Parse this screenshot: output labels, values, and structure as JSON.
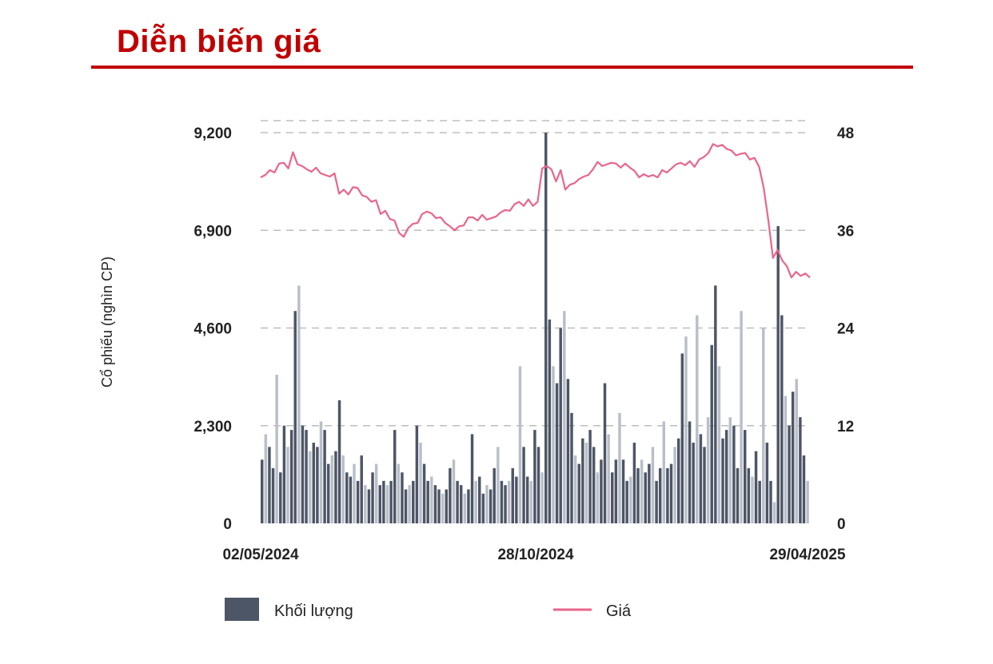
{
  "title": "Diễn biến giá",
  "colors": {
    "title": "#c00000",
    "volume": "#4d5666",
    "volume_light": "#b9bfc8",
    "price": "#e8658c",
    "grid": "#bdbdbd"
  },
  "chart_data": {
    "type": "bar+line",
    "ylabel_left": "Cổ phiếu (nghìn CP)",
    "ylim_left": [
      0,
      9200
    ],
    "yticks_left": [
      "0",
      "2,300",
      "4,600",
      "6,900",
      "9,200"
    ],
    "ylim_right": [
      0,
      48
    ],
    "yticks_right": [
      "0",
      "12",
      "24",
      "36",
      "48"
    ],
    "x_range": [
      "02/05/2024",
      "29/04/2025"
    ],
    "x_tick_labels": [
      "02/05/2024",
      "28/10/2024",
      "29/04/2025"
    ],
    "grid": "horizontal dashed",
    "legend_position": "bottom",
    "series": [
      {
        "name": "Khối lượng",
        "kind": "bar",
        "note": "daily volume (nghìn CP), sampled ~every 2 sessions",
        "values": [
          1500,
          2100,
          1800,
          1300,
          3500,
          1200,
          2300,
          1800,
          2200,
          5000,
          5600,
          2300,
          2200,
          1700,
          1900,
          1800,
          2400,
          2200,
          1400,
          1600,
          1700,
          2900,
          1600,
          1200,
          1100,
          1400,
          1000,
          1600,
          900,
          800,
          1200,
          1400,
          900,
          1000,
          900,
          1000,
          2200,
          1400,
          1200,
          800,
          900,
          1000,
          2300,
          1900,
          1400,
          1000,
          1100,
          900,
          800,
          700,
          800,
          1300,
          1500,
          1000,
          900,
          700,
          800,
          2100,
          1000,
          1100,
          700,
          900,
          800,
          1300,
          1800,
          1000,
          900,
          1000,
          1300,
          1100,
          3700,
          1800,
          1100,
          1000,
          2200,
          1800,
          1200,
          9200,
          4800,
          3700,
          3300,
          4600,
          5000,
          3400,
          2600,
          1600,
          1400,
          2000,
          1900,
          2200,
          1800,
          1200,
          1500,
          3300,
          2100,
          1200,
          1500,
          2600,
          1500,
          1000,
          1100,
          1900,
          1300,
          1500,
          1200,
          1400,
          1800,
          1000,
          1300,
          2400,
          1300,
          1400,
          1800,
          2000,
          4000,
          4400,
          2400,
          1900,
          4900,
          2100,
          1800,
          2500,
          4200,
          5600,
          3700,
          2000,
          2200,
          2500,
          2300,
          1300,
          5000,
          2200,
          1300,
          1100,
          1700,
          1000,
          4600,
          1900,
          1000,
          500,
          7000,
          4900,
          3000,
          2300,
          3100,
          3400,
          2500,
          1600,
          1000
        ]
      },
      {
        "name": "Giá",
        "kind": "line",
        "note": "closing price",
        "values": [
          42.5,
          42.8,
          43.4,
          43.1,
          44.2,
          44.3,
          43.6,
          45.6,
          44.1,
          43.9,
          43.5,
          43.2,
          43.7,
          43.0,
          42.8,
          42.6,
          43.0,
          40.5,
          41.0,
          40.4,
          41.3,
          41.2,
          40.3,
          40.1,
          39.5,
          39.7,
          38.0,
          38.4,
          37.4,
          37.2,
          35.7,
          35.2,
          36.3,
          36.8,
          36.9,
          38.0,
          38.3,
          38.1,
          37.5,
          37.6,
          36.9,
          36.5,
          36.0,
          36.5,
          36.6,
          37.6,
          37.6,
          37.2,
          37.9,
          37.3,
          37.5,
          37.7,
          38.2,
          38.5,
          38.4,
          39.2,
          39.5,
          39.0,
          39.8,
          39.0,
          39.5,
          43.6,
          43.9,
          43.5,
          42.0,
          43.4,
          41.0,
          41.6,
          41.8,
          42.3,
          42.6,
          42.8,
          43.5,
          44.4,
          43.9,
          44.1,
          44.3,
          44.2,
          43.7,
          44.2,
          43.7,
          43.3,
          42.5,
          42.9,
          42.6,
          42.8,
          42.5,
          43.4,
          43.1,
          43.6,
          44.1,
          44.3,
          44.0,
          44.5,
          43.8,
          44.7,
          45.0,
          45.5,
          46.6,
          46.3,
          46.5,
          46.0,
          45.8,
          45.2,
          45.4,
          45.5,
          44.7,
          44.9,
          43.8,
          41.2,
          37.2,
          32.6,
          33.6,
          32.3,
          31.6,
          30.2,
          30.9,
          30.4,
          30.7,
          30.2
        ]
      }
    ],
    "legend": [
      "Khối lượng",
      "Giá"
    ]
  }
}
